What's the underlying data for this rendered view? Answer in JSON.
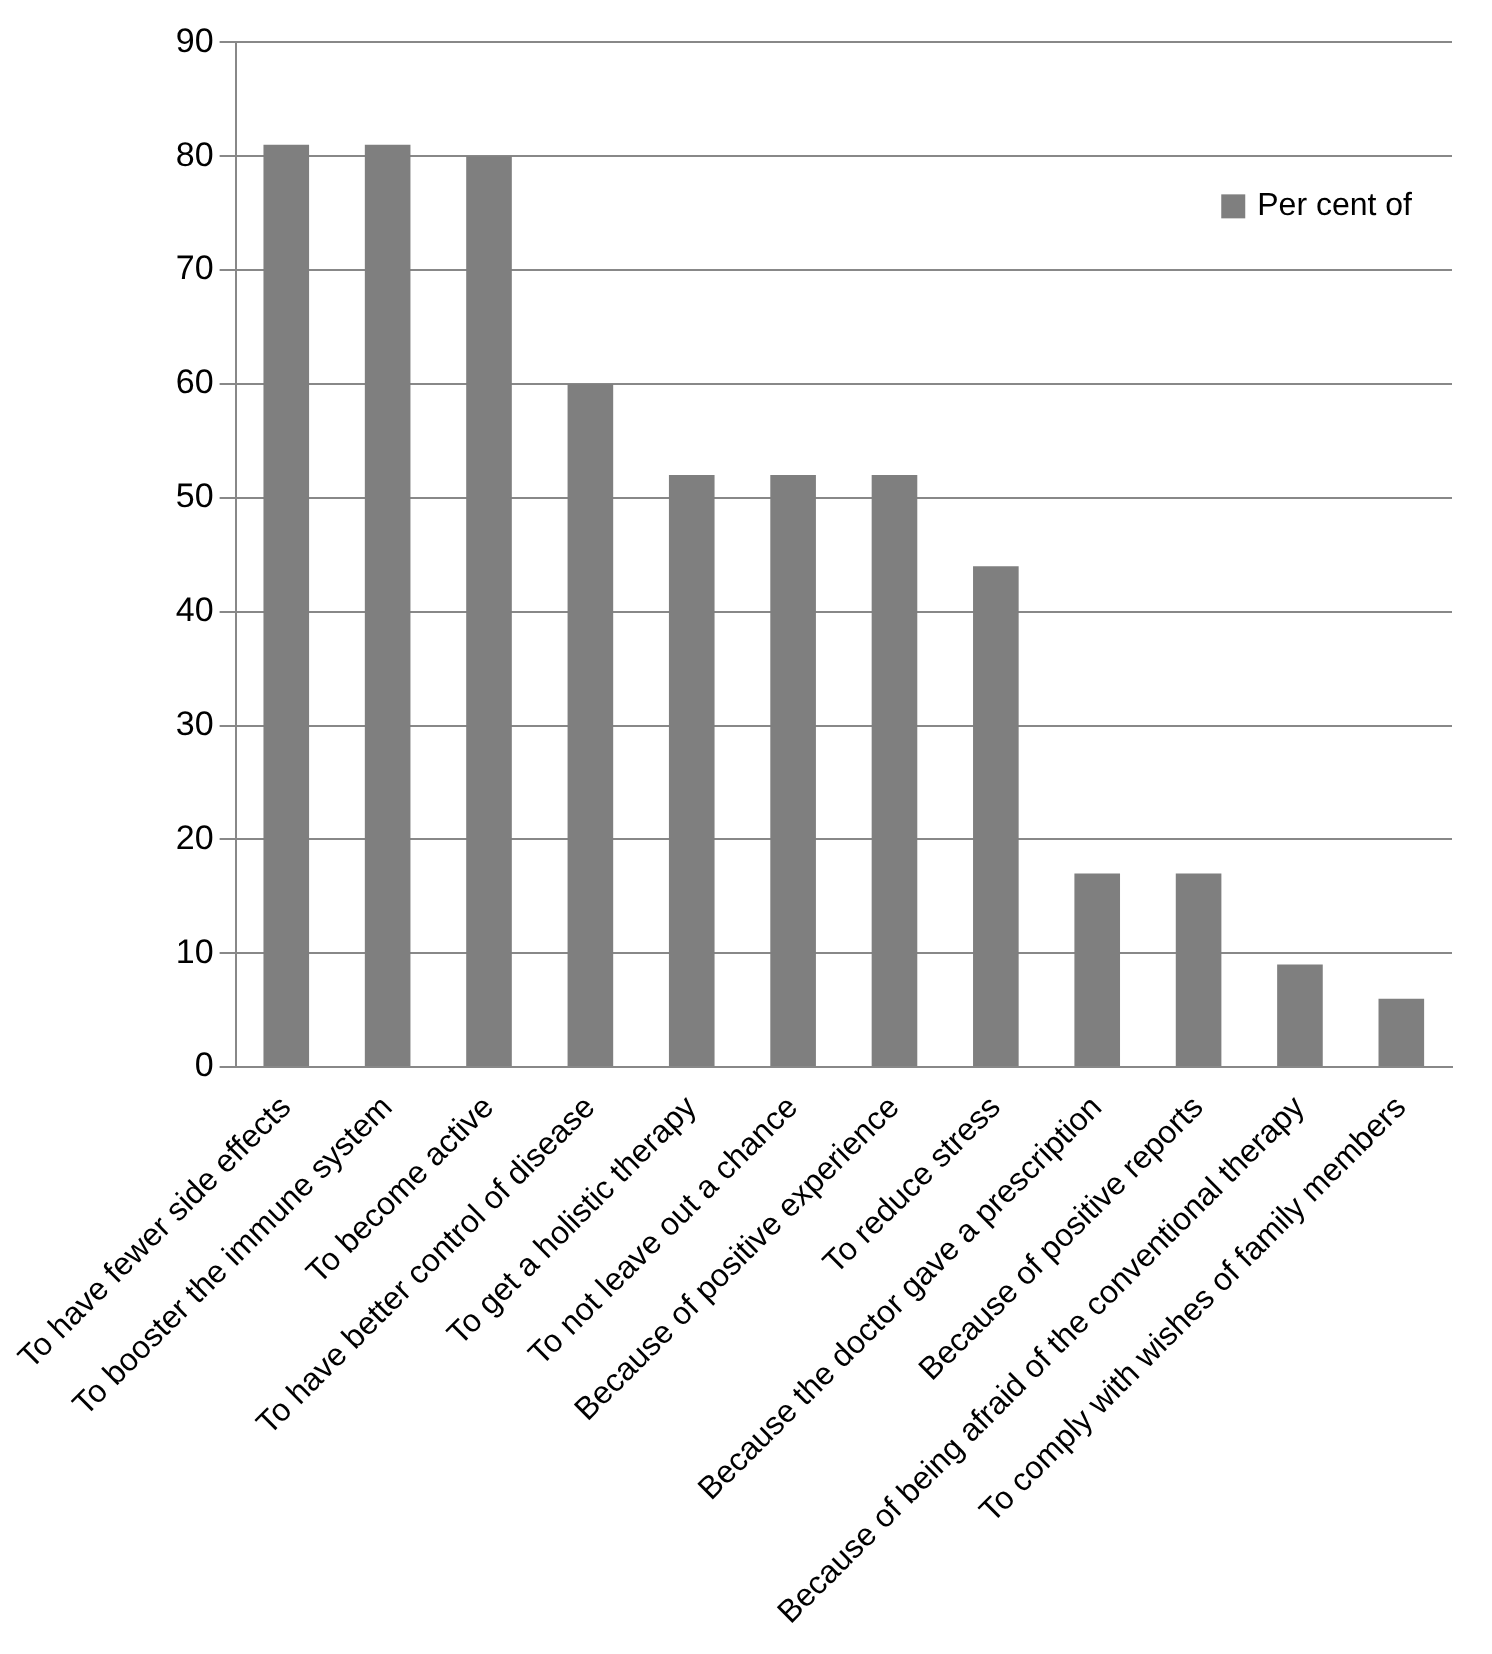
{
  "chart_data": {
    "type": "bar",
    "categories": [
      "To have fewer side effects",
      "To booster the immune system",
      "To become active",
      "To have better control of disease",
      "To get a holistic therapy",
      "To not leave out a chance",
      "Because of positive experience",
      "To reduce stress",
      "Because the doctor gave a prescription",
      "Because of positive reports",
      "Because of being afraid of the conventional therapy",
      "To comply with wishes of family members"
    ],
    "series": [
      {
        "name": "Per cent of",
        "color": "#7f7f7f",
        "values": [
          81,
          81,
          80,
          60,
          52,
          52,
          52,
          44,
          17,
          17,
          9,
          6
        ]
      }
    ],
    "ylim": [
      0,
      90
    ],
    "yticks": [
      0,
      10,
      20,
      30,
      40,
      50,
      60,
      70,
      80,
      90
    ],
    "grid": "y",
    "legend": "top right"
  }
}
